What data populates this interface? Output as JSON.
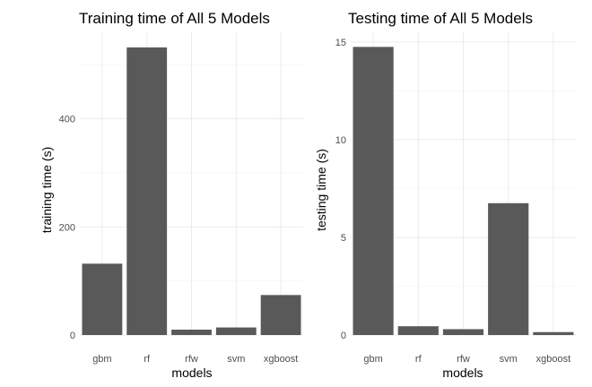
{
  "chart_data": [
    {
      "type": "bar",
      "title": "Training time of All 5 Models",
      "xlabel": "models",
      "ylabel": "training time (s)",
      "categories": [
        "gbm",
        "rf",
        "rfw",
        "svm",
        "xgboost"
      ],
      "values": [
        132,
        532,
        10,
        14,
        74
      ],
      "ylim": [
        0,
        560
      ],
      "yticks": [
        0,
        200,
        400
      ],
      "grid": true,
      "bar_color": "#595959"
    },
    {
      "type": "bar",
      "title": "Testing time of All 5 Models",
      "xlabel": "models",
      "ylabel": "testing time (s)",
      "categories": [
        "gbm",
        "rf",
        "rfw",
        "svm",
        "xgboost"
      ],
      "values": [
        14.75,
        0.45,
        0.3,
        6.75,
        0.15
      ],
      "ylim": [
        0,
        15.5
      ],
      "yticks": [
        0,
        5,
        10,
        15
      ],
      "grid": true,
      "bar_color": "#595959"
    }
  ]
}
